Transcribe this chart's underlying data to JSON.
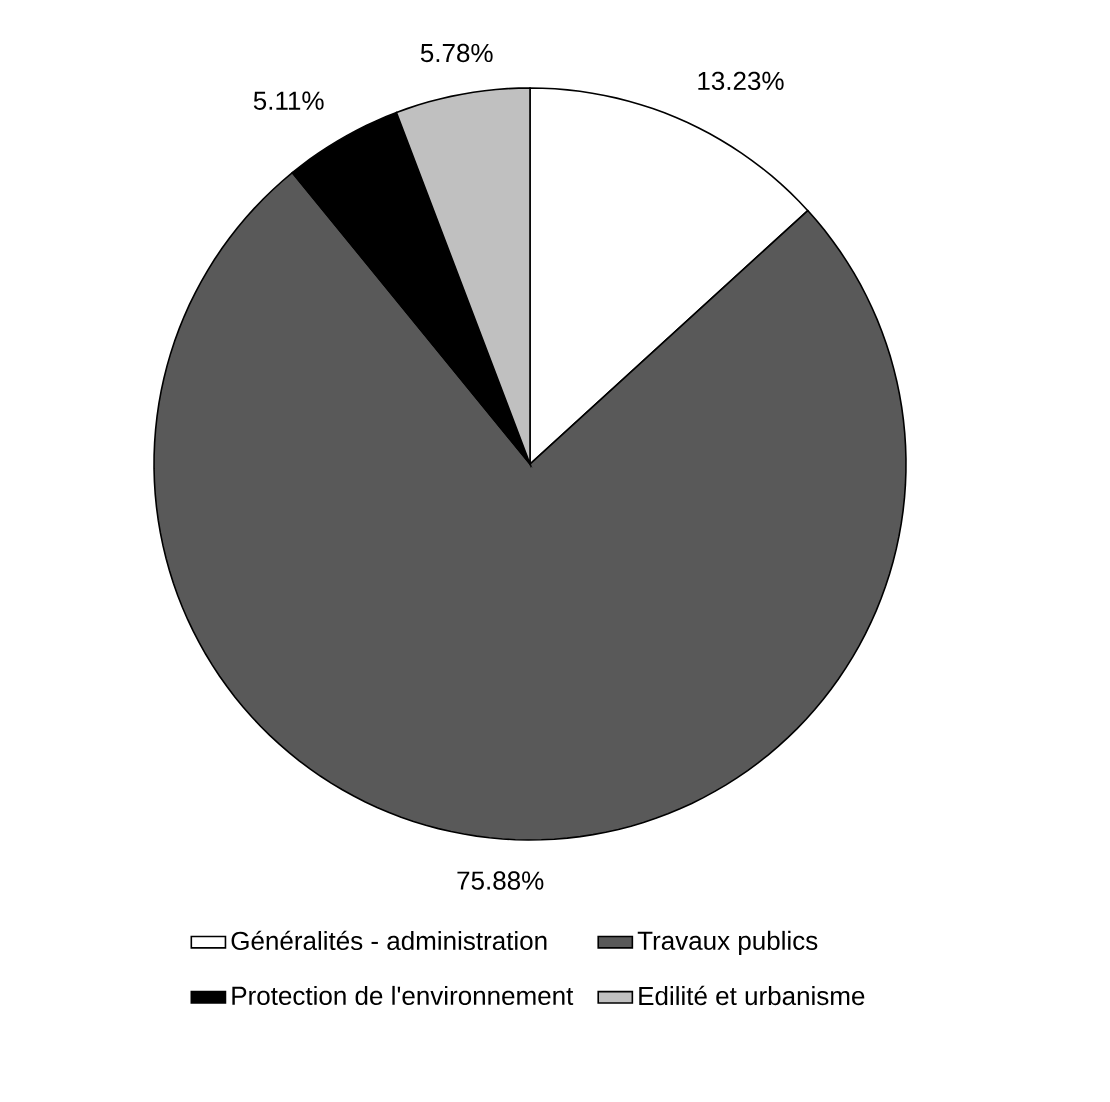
{
  "chart_data": {
    "type": "pie",
    "categories": [
      "Généralités - administration",
      "Travaux publics",
      "Protection de l'environnement",
      "Edilité et urbanisme"
    ],
    "values": [
      13.23,
      75.88,
      5.11,
      5.78
    ],
    "value_labels": [
      "13.23%",
      "75.88%",
      "5.11%",
      "5.78%"
    ],
    "colors": [
      "#ffffff",
      "#595959",
      "#000000",
      "#c0c0c0"
    ],
    "legend": "bottom"
  }
}
